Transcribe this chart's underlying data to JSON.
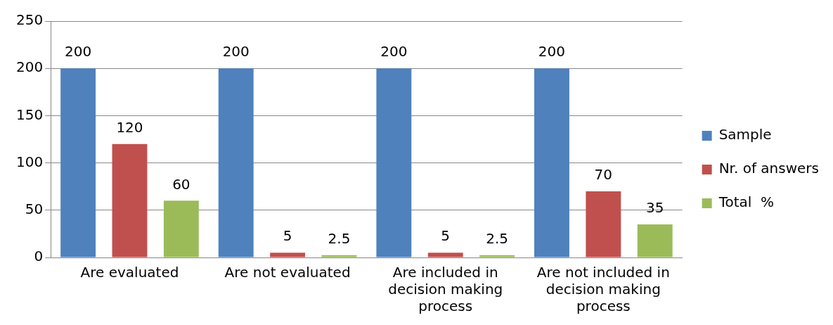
{
  "chart_data": {
    "type": "bar",
    "categories": [
      "Are evaluated",
      "Are not evaluated",
      "Are included in decision making process",
      "Are not included in decision making process"
    ],
    "series": [
      {
        "name": "Sample",
        "color": "#4f81bd",
        "values": [
          200,
          200,
          200,
          200
        ]
      },
      {
        "name": "Nr. of answers",
        "color": "#c0504d",
        "values": [
          120,
          5,
          5,
          70
        ]
      },
      {
        "name": "Total  %",
        "color": "#9bbb59",
        "values": [
          60,
          2.5,
          2.5,
          35
        ]
      }
    ],
    "ylim": [
      0,
      250
    ],
    "yticks": [
      0,
      50,
      100,
      150,
      200,
      250
    ],
    "grid": "y",
    "legend": "right",
    "data_labels": true
  }
}
